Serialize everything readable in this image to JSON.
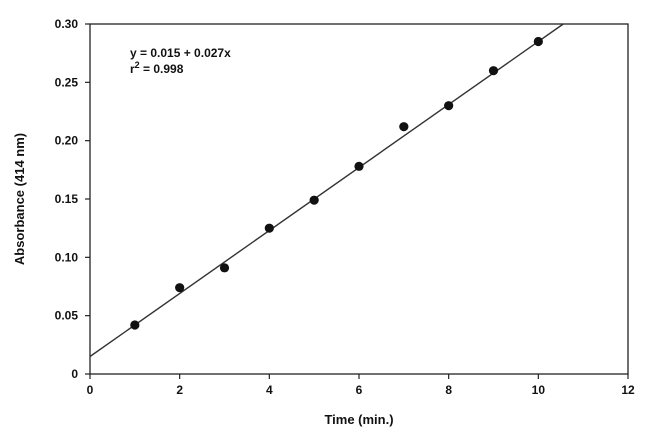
{
  "chart_data": {
    "type": "scatter",
    "xlabel": "Time (min.)",
    "ylabel": "Absorbance (414 nm)",
    "xlim": [
      0,
      12
    ],
    "ylim": [
      0,
      0.3
    ],
    "xticks": [
      0,
      2,
      4,
      6,
      8,
      10,
      12
    ],
    "xtick_labels": [
      "0",
      "2",
      "4",
      "6",
      "8",
      "10",
      "12"
    ],
    "yticks": [
      0,
      0.05,
      0.1,
      0.15,
      0.2,
      0.25,
      0.3
    ],
    "ytick_labels": [
      "0",
      "0.05",
      "0.10",
      "0.15",
      "0.20",
      "0.25",
      "0.30"
    ],
    "grid": false,
    "legend": "none",
    "points": [
      {
        "x": 1,
        "y": 0.042
      },
      {
        "x": 2,
        "y": 0.074
      },
      {
        "x": 3,
        "y": 0.091
      },
      {
        "x": 4,
        "y": 0.125
      },
      {
        "x": 5,
        "y": 0.149
      },
      {
        "x": 6,
        "y": 0.178
      },
      {
        "x": 7,
        "y": 0.212
      },
      {
        "x": 8,
        "y": 0.23
      },
      {
        "x": 9,
        "y": 0.26
      },
      {
        "x": 10,
        "y": 0.285
      }
    ],
    "fit": {
      "intercept": 0.015,
      "slope": 0.027
    },
    "annotation": {
      "equation": "y = 0.015 + 0.027x",
      "r2_prefix": "r",
      "r2_sup": "2",
      "r2_value": " = 0.998"
    },
    "marker_color": "#111111",
    "line_color": "#333333"
  }
}
